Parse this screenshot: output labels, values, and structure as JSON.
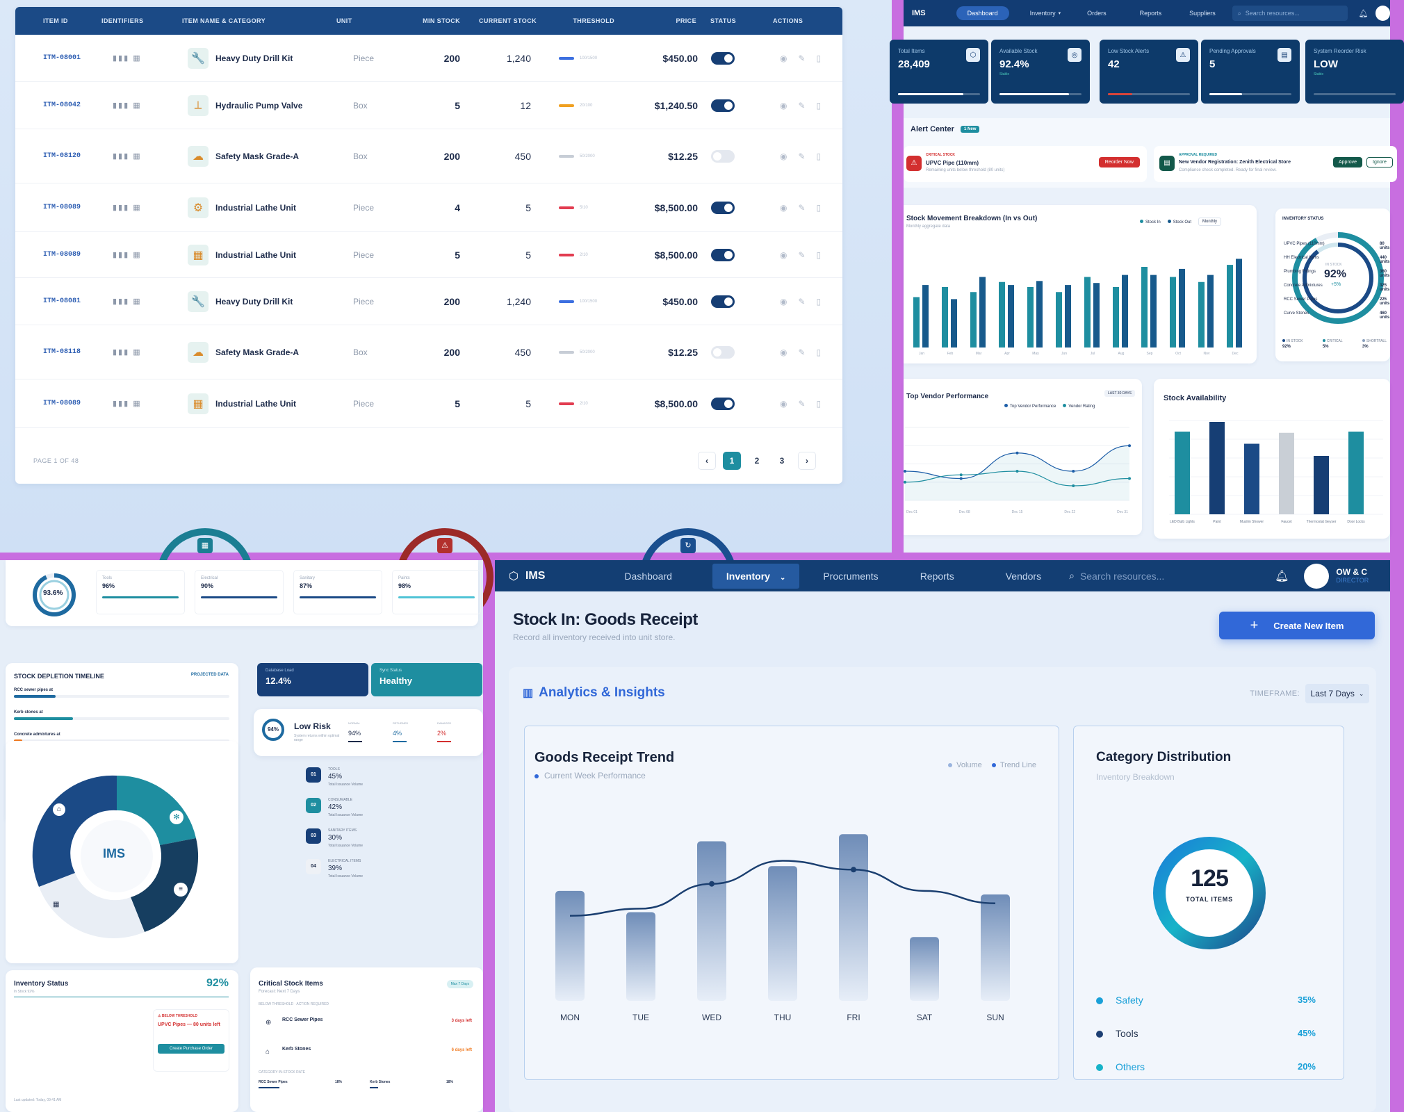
{
  "items_table": {
    "headers": [
      "ITEM ID",
      "IDENTIFIERS",
      "ITEM NAME & CATEGORY",
      "UNIT",
      "MIN STOCK",
      "CURRENT STOCK",
      "THRESHOLD",
      "PRICE",
      "STATUS",
      "ACTIONS"
    ],
    "rows": [
      {
        "id": "ITM-08001",
        "name": "Heavy Duty Drill Kit",
        "unit": "Piece",
        "min": "200",
        "current": "1,240",
        "threshold": "100/1500",
        "price": "$450.00",
        "active": true,
        "bar_color": "#3c6fe0"
      },
      {
        "id": "ITM-08042",
        "name": "Hydraulic Pump Valve",
        "unit": "Box",
        "min": "5",
        "current": "12",
        "threshold": "20/100",
        "price": "$1,240.50",
        "active": true,
        "bar_color": "#f0a020"
      },
      {
        "id": "ITM-08120",
        "name": "Safety Mask Grade-A",
        "unit": "Box",
        "min": "200",
        "current": "450",
        "threshold": "50/2000",
        "price": "$12.25",
        "active": false,
        "bar_color": "#c7cdd6"
      },
      {
        "id": "ITM-08089",
        "name": "Industrial Lathe Unit",
        "unit": "Piece",
        "min": "4",
        "current": "5",
        "threshold": "5/10",
        "price": "$8,500.00",
        "active": true,
        "bar_color": "#e23c50"
      },
      {
        "id": "ITM-08089",
        "name": "Industrial Lathe Unit",
        "unit": "Piece",
        "min": "5",
        "current": "5",
        "threshold": "2/10",
        "price": "$8,500.00",
        "active": true,
        "bar_color": "#e23c50"
      },
      {
        "id": "ITM-08081",
        "name": "Heavy Duty Drill Kit",
        "unit": "Piece",
        "min": "200",
        "current": "1,240",
        "threshold": "100/1500",
        "price": "$450.00",
        "active": true,
        "bar_color": "#3c6fe0"
      },
      {
        "id": "ITM-08118",
        "name": "Safety Mask Grade-A",
        "unit": "Box",
        "min": "200",
        "current": "450",
        "threshold": "50/2000",
        "price": "$12.25",
        "active": false,
        "bar_color": "#c7cdd6"
      },
      {
        "id": "ITM-08089",
        "name": "Industrial Lathe Unit",
        "unit": "Piece",
        "min": "5",
        "current": "5",
        "threshold": "2/10",
        "price": "$8,500.00",
        "active": true,
        "bar_color": "#e23c50"
      }
    ],
    "page_label": "PAGE 1 OF 48",
    "pages": [
      "1",
      "2",
      "3"
    ]
  },
  "dashboard": {
    "brand": "IMS",
    "nav": [
      "Dashboard",
      "Inventory",
      "Orders",
      "Reports",
      "Suppliers"
    ],
    "search_placeholder": "Search resources...",
    "kpis": [
      {
        "label": "Total Items",
        "value": "28,409"
      },
      {
        "label": "Available Stock",
        "value": "92.4%",
        "note": "Stable"
      },
      {
        "label": "Low Stock Alerts",
        "value": "42"
      },
      {
        "label": "Pending Approvals",
        "value": "5"
      },
      {
        "label": "System Reorder Risk",
        "value": "LOW",
        "note": "Stable"
      }
    ],
    "alert_title": "Alert Center",
    "alert_badge": "1 New",
    "alert1_tag": "CRITICAL STOCK",
    "alert1_title": "UPVC Pipe (110mm)",
    "alert1_sub": "Remaining units below threshold (80 units)",
    "alert1_btn": "Reorder Now",
    "alert2_tag": "APPROVAL REQUIRED",
    "alert2_title": "New Vendor Registration: Zenith Electrical Store",
    "alert2_sub": "Compliance check completed. Ready for final review.",
    "alert2_btn1": "Approve",
    "alert2_btn2": "Ignore",
    "movement_title": "Stock Movement Breakdown (In vs Out)",
    "movement_sub": "Monthly aggregate data",
    "movement_legend": [
      "Stock In",
      "Stock Out"
    ],
    "movement_filter": "Monthly",
    "movement_months": [
      "Jan",
      "Feb",
      "Mar",
      "Apr",
      "May",
      "Jun",
      "Jul",
      "Aug",
      "Sep",
      "Oct",
      "Nov",
      "Dec"
    ],
    "inv_status_title": "INVENTORY STATUS",
    "inv_status_value": "92%",
    "inv_status_sub": "IN STOCK",
    "inv_status_delta": "+5%",
    "inv_legend": [
      {
        "label": "IN STOCK",
        "value": "92%"
      },
      {
        "label": "CRITICAL",
        "value": "5%"
      },
      {
        "label": "SHORTFALL",
        "value": "3%"
      }
    ],
    "vendor_title": "Top Vendor Performance",
    "vendor_badge": "LAST 30 DAYS",
    "vendor_legend": [
      "Top Vendor Performance",
      "Vendor Rating"
    ],
    "vendor_x": [
      "Dec 01",
      "Dec 08",
      "Dec 15",
      "Dec 22",
      "Dec 31"
    ],
    "avail_title": "Stock Availability",
    "avail_cats": [
      "LED Bulb Lights",
      "Paint",
      "Muslim Shower",
      "Faucet",
      "Thermostat Geyser",
      "Door Locks"
    ]
  },
  "category_health": {
    "ring_value": "93.6%",
    "cats": [
      {
        "label": "Tools",
        "value": "96%"
      },
      {
        "label": "Electrical",
        "value": "90%"
      },
      {
        "label": "Sanitary",
        "value": "87%"
      },
      {
        "label": "Paints",
        "value": "98%"
      }
    ],
    "timeline_title": "STOCK DEPLETION TIMELINE",
    "timeline_tag": "PROJECTED DATA",
    "timeline": [
      {
        "label": "RCC sewer pipes at",
        "color": "#1e6aa0"
      },
      {
        "label": "Kerb stones at",
        "color": "#1e8ea0"
      },
      {
        "label": "Concrete admixtures at",
        "color": "#f07a20"
      }
    ],
    "ring_center": "IMS",
    "db_load_label": "Database Load",
    "db_load_value": "12.4%",
    "sync_label": "Sync Status",
    "sync_value": "Healthy",
    "risk_pct": "94%",
    "risk_title": "Low Risk",
    "risk_sub": "System returns within optimal range",
    "risk_cols": [
      {
        "label": "NORMAL",
        "value": "94%"
      },
      {
        "label": "RETURNED",
        "value": "4%"
      },
      {
        "label": "DAMAGED",
        "value": "2%"
      }
    ],
    "issuance": [
      {
        "num": "01",
        "cat": "TOOLS",
        "pct": "45%"
      },
      {
        "num": "02",
        "cat": "CONSUMABLE",
        "pct": "42%"
      },
      {
        "num": "03",
        "cat": "SANITARY ITEMS",
        "pct": "30%"
      },
      {
        "num": "04",
        "cat": "ELECTRICAL ITEMS",
        "pct": "39%"
      }
    ],
    "issuance_sub": "Total Issuance Volume",
    "inv_status_title": "Inventory Status",
    "inv_status_sub": "In Stock 92%",
    "inv_status_value": "92%",
    "inv_items": [
      {
        "name": "UPVC Pipes (110mm)",
        "qty": "80 units"
      },
      {
        "name": "HH Electrical Items",
        "qty": "440 units"
      },
      {
        "name": "Plumbing Fittings",
        "qty": "360 units"
      },
      {
        "name": "Concrete Admixtures",
        "qty": "325 units"
      },
      {
        "name": "RCC Sewer Pipes",
        "qty": "225 units"
      },
      {
        "name": "Curve Stones",
        "qty": "460 units"
      }
    ],
    "below_title": "BELOW THRESHOLD",
    "below_text": "UPVC Pipes — 80 units left",
    "below_btn": "Create Purchase Order",
    "inv_updated": "Last updated: Today, 09:41 AM",
    "critical_title": "Critical Stock Items",
    "critical_sub": "Forecast: Next 7 Days",
    "critical_badge": "Max 7 Days",
    "critical_tag": "BELOW THRESHOLD · ACTION REQUIRED",
    "critical_items": [
      {
        "name": "RCC Sewer Pipes",
        "eta": "3 days left"
      },
      {
        "name": "Kerb Stones",
        "eta": "6 days left"
      }
    ],
    "category_rate_title": "CATEGORY IN-STOCK RATE",
    "category_rate": [
      {
        "name": "RCC Sewer Pipes",
        "value": "18%"
      },
      {
        "name": "Kerb Stones",
        "value": "18%"
      }
    ]
  },
  "stock_in": {
    "brand": "IMS",
    "nav": [
      "Dashboard",
      "Inventory",
      "Procruments",
      "Reports",
      "Vendors"
    ],
    "search_placeholder": "Search resources...",
    "user_name": "OW & C",
    "user_role": "DIRECTOR",
    "page_title": "Stock In: Goods Receipt",
    "page_sub": "Record all inventory received into unit store.",
    "create_btn": "Create New Item",
    "analytics_title": "Analytics & Insights",
    "timeframe_label": "TIMEFRAME:",
    "timeframe_value": "Last 7 Days",
    "trend_title": "Goods Receipt Trend",
    "trend_sub": "Current Week Performance",
    "trend_legend": [
      "Volume",
      "Trend Line"
    ],
    "dist_title": "Category Distribution",
    "dist_sub": "Inventory Breakdown",
    "dist_total": "125",
    "dist_total_label": "TOTAL ITEMS",
    "dist_items": [
      {
        "name": "Safety",
        "value": "35%",
        "color": "#1aa0d8"
      },
      {
        "name": "Tools",
        "value": "45%",
        "color": "#1d3f73"
      },
      {
        "name": "Others",
        "value": "20%",
        "color": "#17b3c8"
      }
    ]
  },
  "chart_data": [
    {
      "type": "bar",
      "title": "Goods Receipt Trend",
      "categories": [
        "MON",
        "TUE",
        "WED",
        "THU",
        "FRI",
        "SAT",
        "SUN"
      ],
      "series": [
        {
          "name": "Volume",
          "values": [
            62,
            50,
            90,
            76,
            94,
            36,
            60
          ]
        },
        {
          "name": "Trend Line",
          "values": [
            48,
            52,
            66,
            79,
            74,
            62,
            55
          ]
        }
      ]
    },
    {
      "type": "bar",
      "title": "Stock Movement Breakdown (In vs Out)",
      "categories": [
        "Jan",
        "Feb",
        "Mar",
        "Apr",
        "May",
        "Jun",
        "Jul",
        "Aug",
        "Sep",
        "Oct",
        "Nov",
        "Dec"
      ],
      "series": [
        {
          "name": "Stock In",
          "values": [
            50,
            60,
            55,
            65,
            60,
            55,
            70,
            60,
            80,
            70,
            65,
            82
          ]
        },
        {
          "name": "Stock Out",
          "values": [
            62,
            48,
            70,
            62,
            66,
            62,
            64,
            72,
            72,
            78,
            72,
            88
          ]
        }
      ]
    },
    {
      "type": "bar",
      "title": "Stock Availability",
      "categories": [
        "LED Bulb Lights",
        "Paint",
        "Muslim Shower",
        "Faucet",
        "Thermostat Geyser",
        "Door Locks"
      ],
      "values": [
        68,
        76,
        58,
        67,
        48,
        68
      ]
    },
    {
      "type": "line",
      "title": "Top Vendor Performance",
      "x": [
        "Dec 01",
        "Dec 08",
        "Dec 15",
        "Dec 22",
        "Dec 31"
      ],
      "series": [
        {
          "name": "Top Vendor Performance",
          "values": [
            40,
            30,
            65,
            40,
            75
          ]
        },
        {
          "name": "Vendor Rating",
          "values": [
            25,
            35,
            40,
            20,
            30
          ]
        }
      ]
    },
    {
      "type": "pie",
      "title": "Category Distribution",
      "categories": [
        "Safety",
        "Tools",
        "Others"
      ],
      "values": [
        35,
        45,
        20
      ]
    }
  ]
}
